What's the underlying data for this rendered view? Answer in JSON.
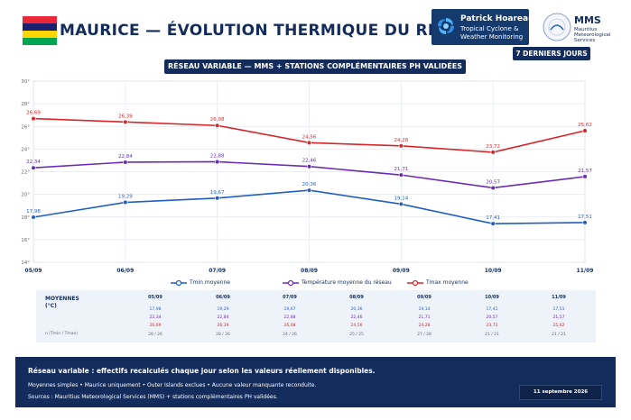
{
  "header": {
    "title": "MAURICE — ÉVOLUTION THERMIQUE DU RÉSEAU",
    "subtitle": "RÉSEAU VARIABLE — MMS + STATIONS COMPLÉMENTAIRES PH VALIDÉES",
    "period": "7 DERNIERS JOURS",
    "flag_colors": [
      "#ea2839",
      "#1a206d",
      "#ffd500",
      "#00a551"
    ]
  },
  "logos": {
    "ph": {
      "line1": "Patrick Hoareau",
      "line2": "Tropical Cyclone &",
      "line3": "Weather Monitoring",
      "icon": "cyclone-icon"
    },
    "mms": {
      "name": "MMS",
      "sub1": "Mauritius",
      "sub2": "Meteorological",
      "sub3": "Services",
      "icon": "mms-seal-icon"
    }
  },
  "chart_data": {
    "type": "line",
    "categories": [
      "05/09",
      "06/09",
      "07/09",
      "08/09",
      "09/09",
      "10/09",
      "11/09"
    ],
    "ylim": [
      14,
      30
    ],
    "yticks": [
      14,
      16,
      18,
      20,
      22,
      24,
      26,
      28,
      30
    ],
    "ytick_labels": [
      "14°",
      "16°",
      "18°",
      "20°",
      "22°",
      "24°",
      "26°",
      "28°",
      "30°"
    ],
    "grid": true,
    "series": [
      {
        "key": "tmin",
        "name": "Tmin moyenne",
        "color": "#1f5fc4",
        "values": [
          17.98,
          19.29,
          19.67,
          20.36,
          19.14,
          17.41,
          17.51
        ],
        "labels": [
          "17,98",
          "19,29",
          "19,67",
          "20,36",
          "19,14",
          "17,41",
          "17,51"
        ]
      },
      {
        "key": "tavg",
        "name": "Température moyenne du réseau",
        "color": "#6a2bb8",
        "values": [
          22.34,
          22.84,
          22.88,
          22.46,
          21.71,
          20.57,
          21.57
        ],
        "labels": [
          "22,34",
          "22,84",
          "22,88",
          "22,46",
          "21,71",
          "20,57",
          "21,57"
        ]
      },
      {
        "key": "tmax",
        "name": "Tmax moyenne",
        "color": "#d7262b",
        "values": [
          26.69,
          26.39,
          26.08,
          24.56,
          24.28,
          23.72,
          25.62
        ],
        "labels": [
          "26,69",
          "26,39",
          "26,08",
          "24,56",
          "24,28",
          "23,72",
          "25,62"
        ]
      }
    ]
  },
  "table": {
    "title": "MOYENNES",
    "unit": "(°C)",
    "range_label": "n (Tmin / Tmax)",
    "columns": [
      "05/09",
      "06/09",
      "07/09",
      "08/09",
      "09/09",
      "10/09",
      "11/09"
    ],
    "tmin": [
      "17,98",
      "19,29",
      "19,67",
      "20,36",
      "19,14",
      "17,41",
      "17,51"
    ],
    "tavg": [
      "22,34",
      "22,84",
      "22,88",
      "22,46",
      "21,71",
      "20,57",
      "21,57"
    ],
    "tmax": [
      "26,69",
      "26,39",
      "26,08",
      "24,56",
      "24,28",
      "23,72",
      "25,62"
    ],
    "counts": [
      "28 / 26",
      "28 / 26",
      "24 / 26",
      "25 / 25",
      "27 / 28",
      "21 / 21",
      "21 / 21"
    ]
  },
  "footer": {
    "line1": "Réseau variable : effectifs recalculés chaque jour selon les valeurs réellement disponibles.",
    "line2": "Moyennes simples • Maurice uniquement • Outer Islands exclues • Aucune valeur manquante reconduite.",
    "line3": "Sources : Mauritius Meteorological Services (MMS) + stations complémentaires PH validées.",
    "date": "11 septembre 2026"
  }
}
